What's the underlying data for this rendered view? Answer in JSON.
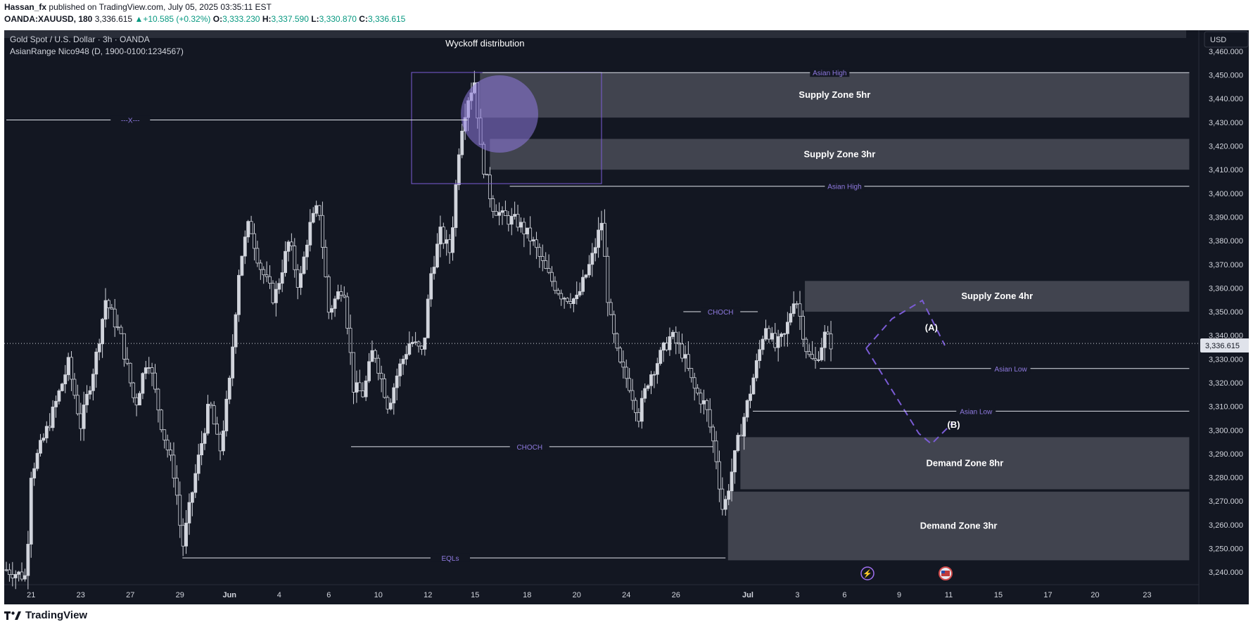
{
  "header": {
    "author": "Hassan_fx",
    "published_text": "published on TradingView.com, July 05, 2025 03:35:11 EST",
    "symbol": "OANDA:XAUUSD, 180",
    "last": "3,336.615",
    "change": "+10.585 (+0.32%)",
    "o_label": "O:",
    "o": "3,333.230",
    "h_label": "H:",
    "h": "3,337.590",
    "l_label": "L:",
    "l": "3,330.870",
    "c_label": "C:",
    "c": "3,336.615"
  },
  "legend": {
    "title": "Gold Spot / U.S. Dollar · 3h · OANDA",
    "indicator": "AsianRange Nico948 (D, 1900-0100:1234567)"
  },
  "currency_button": "USD",
  "price_tag": "3,336.615",
  "footer": {
    "brand": "TradingView"
  },
  "colors": {
    "background": "#131722",
    "candle": "#d1d4dc",
    "zone_fill": "#4a4c57",
    "purple": "#7b5cd6",
    "purple_light": "#8f7ae0",
    "axis_text": "#d1d4dc"
  },
  "chart_data": {
    "type": "candlestick",
    "y_axis": {
      "min": 3235,
      "max": 3468,
      "ticks": [
        3240,
        3250,
        3260,
        3270,
        3280,
        3290,
        3300,
        3310,
        3320,
        3330,
        3340,
        3350,
        3360,
        3370,
        3380,
        3390,
        3400,
        3410,
        3420,
        3430,
        3440,
        3450,
        3460
      ],
      "tick_labels": [
        "3,240.000",
        "3,250.000",
        "3,260.000",
        "3,270.000",
        "3,280.000",
        "3,290.000",
        "3,300.000",
        "3,310.000",
        "3,320.000",
        "3,330.000",
        "3,340.000",
        "3,350.000",
        "3,360.000",
        "3,370.000",
        "3,380.000",
        "3,390.000",
        "3,400.000",
        "3,410.000",
        "3,420.000",
        "3,430.000",
        "3,440.000",
        "3,450.000",
        "3,460.000"
      ]
    },
    "x_axis": {
      "day_start": -1,
      "day_end": 47,
      "ticks": [
        {
          "label": "21",
          "d": 0
        },
        {
          "label": "23",
          "d": 2
        },
        {
          "label": "27",
          "d": 4
        },
        {
          "label": "29",
          "d": 6
        },
        {
          "label": "Jun",
          "d": 8
        },
        {
          "label": "4",
          "d": 10
        },
        {
          "label": "6",
          "d": 12
        },
        {
          "label": "10",
          "d": 14
        },
        {
          "label": "12",
          "d": 16
        },
        {
          "label": "15",
          "d": 17.9
        },
        {
          "label": "18",
          "d": 20
        },
        {
          "label": "20",
          "d": 22
        },
        {
          "label": "24",
          "d": 24
        },
        {
          "label": "26",
          "d": 26
        },
        {
          "label": "Jul",
          "d": 28.9
        },
        {
          "label": "3",
          "d": 30.9
        },
        {
          "label": "6",
          "d": 32.8
        },
        {
          "label": "9",
          "d": 35
        },
        {
          "label": "11",
          "d": 37
        },
        {
          "label": "15",
          "d": 39
        },
        {
          "label": "17",
          "d": 41
        },
        {
          "label": "20",
          "d": 42.9
        },
        {
          "label": "23",
          "d": 45
        }
      ]
    },
    "path": [
      [
        -1,
        3241
      ],
      [
        -0.2,
        3238
      ],
      [
        0,
        3282
      ],
      [
        0.8,
        3305
      ],
      [
        1.5,
        3328
      ],
      [
        2,
        3302
      ],
      [
        2.6,
        3330
      ],
      [
        3,
        3355
      ],
      [
        3.6,
        3340
      ],
      [
        4.2,
        3310
      ],
      [
        4.7,
        3332
      ],
      [
        5.3,
        3300
      ],
      [
        5.8,
        3280
      ],
      [
        6.1,
        3250
      ],
      [
        6.6,
        3280
      ],
      [
        7.2,
        3312
      ],
      [
        7.6,
        3290
      ],
      [
        8,
        3320
      ],
      [
        8.4,
        3370
      ],
      [
        8.8,
        3388
      ],
      [
        9.2,
        3370
      ],
      [
        9.8,
        3355
      ],
      [
        10.4,
        3380
      ],
      [
        10.8,
        3360
      ],
      [
        11.2,
        3385
      ],
      [
        11.6,
        3395
      ],
      [
        12,
        3350
      ],
      [
        12.6,
        3362
      ],
      [
        13,
        3318
      ],
      [
        13.4,
        3315
      ],
      [
        13.8,
        3335
      ],
      [
        14.4,
        3310
      ],
      [
        14.8,
        3325
      ],
      [
        15.3,
        3338
      ],
      [
        15.8,
        3332
      ],
      [
        16.1,
        3365
      ],
      [
        16.5,
        3383
      ],
      [
        16.9,
        3375
      ],
      [
        17.3,
        3425
      ],
      [
        17.6,
        3440
      ],
      [
        17.9,
        3448
      ],
      [
        18.1,
        3420
      ],
      [
        18.3,
        3408
      ],
      [
        18.6,
        3395
      ],
      [
        19,
        3390
      ],
      [
        19.6,
        3388
      ],
      [
        20.2,
        3380
      ],
      [
        20.8,
        3366
      ],
      [
        21.4,
        3357
      ],
      [
        22,
        3355
      ],
      [
        22.6,
        3372
      ],
      [
        23,
        3388
      ],
      [
        23.3,
        3350
      ],
      [
        23.7,
        3328
      ],
      [
        24.1,
        3320
      ],
      [
        24.5,
        3306
      ],
      [
        24.9,
        3322
      ],
      [
        25.3,
        3330
      ],
      [
        25.8,
        3340
      ],
      [
        26.3,
        3332
      ],
      [
        26.7,
        3318
      ],
      [
        27.2,
        3310
      ],
      [
        27.6,
        3290
      ],
      [
        27.9,
        3265
      ],
      [
        28.2,
        3280
      ],
      [
        28.5,
        3295
      ],
      [
        28.9,
        3312
      ],
      [
        29.3,
        3330
      ],
      [
        29.6,
        3345
      ],
      [
        30,
        3335
      ],
      [
        30.4,
        3340
      ],
      [
        30.8,
        3358
      ],
      [
        31,
        3348
      ],
      [
        31.3,
        3332
      ],
      [
        31.6,
        3328
      ],
      [
        32,
        3340
      ],
      [
        32.3,
        3336
      ]
    ],
    "annotations": [
      {
        "type": "text",
        "text": "Wyckoff distribution",
        "d": 18.3,
        "y": 3462
      },
      {
        "type": "zone",
        "label": "Supply Zone 5hr",
        "d0": 18.1,
        "d1": 46.7,
        "y0": 3432,
        "y1": 3451
      },
      {
        "type": "zone",
        "label": "Supply Zone 3hr",
        "d0": 18.5,
        "d1": 46.7,
        "y0": 3410,
        "y1": 3423
      },
      {
        "type": "zone",
        "label": "Supply Zone 4hr",
        "d0": 31.2,
        "d1": 46.7,
        "y0": 3350,
        "y1": 3363
      },
      {
        "type": "zone",
        "label": "Demand Zone 8hr",
        "d0": 28.6,
        "d1": 46.7,
        "y0": 3275,
        "y1": 3297
      },
      {
        "type": "zone",
        "label": "Demand Zone 3hr",
        "d0": 28.1,
        "d1": 46.7,
        "y0": 3245,
        "y1": 3274
      },
      {
        "type": "hline",
        "label": "Asian High",
        "d0": 18.2,
        "d1": 46.7,
        "y": 3451,
        "label_d": 32.2
      },
      {
        "type": "hline",
        "label": "Asian High",
        "d0": 19.3,
        "d1": 46.7,
        "y": 3403,
        "label_d": 32.8
      },
      {
        "type": "hline",
        "label": "Asian Low",
        "d0": 31.8,
        "d1": 46.7,
        "y": 3326,
        "label_d": 39.5
      },
      {
        "type": "hline",
        "label": "Asian Low",
        "d0": 29.1,
        "d1": 46.7,
        "y": 3308,
        "label_d": 38.1
      },
      {
        "type": "hline",
        "label": "CHOCH",
        "d0": 26.3,
        "d1": 29.3,
        "y": 3350,
        "label_d": 27.8
      },
      {
        "type": "hline",
        "label": "CHOCH",
        "d0": 12.9,
        "d1": 27.5,
        "y": 3293,
        "label_d": 20.1
      },
      {
        "type": "hline",
        "label": "EQLs",
        "d0": 6.1,
        "d1": 28.0,
        "y": 3246,
        "label_d": 16.9
      },
      {
        "type": "hline",
        "label": "---X---",
        "d0": -1,
        "d1": 17.6,
        "y": 3431,
        "label_d": 4.0
      },
      {
        "type": "text",
        "text": "(A)",
        "d": 36.3,
        "y": 3342
      },
      {
        "type": "text",
        "text": "(B)",
        "d": 37.2,
        "y": 3301
      },
      {
        "type": "price_line",
        "y": 3336.615
      }
    ]
  }
}
